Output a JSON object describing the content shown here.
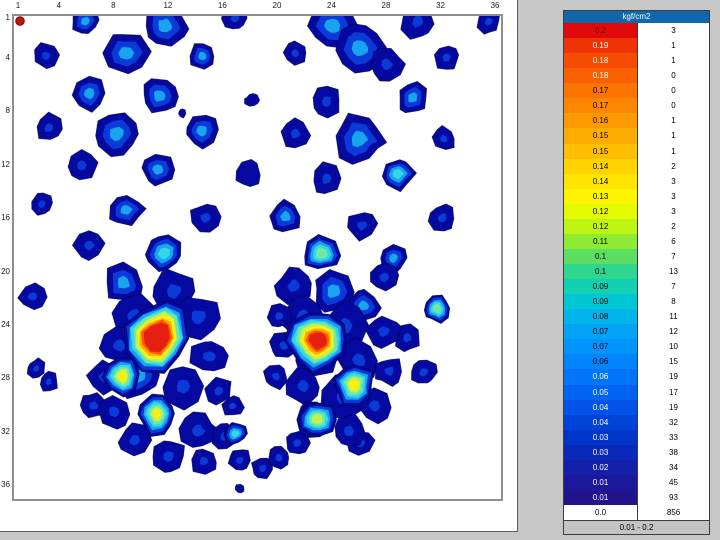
{
  "app": {
    "background": "#c7c7c7",
    "page_bg": "#ffffff"
  },
  "chart_data": {
    "type": "heatmap",
    "unit": "kgf/cm2",
    "x_ticks": [
      1,
      4,
      8,
      12,
      16,
      20,
      24,
      28,
      32,
      36
    ],
    "y_ticks": [
      1,
      4,
      8,
      12,
      16,
      20,
      24,
      28,
      32,
      36
    ],
    "x_range": [
      1,
      36
    ],
    "y_range": [
      1,
      36
    ],
    "grid_cells_total": 1296,
    "marker": {
      "col": 1,
      "row": 1,
      "color": "#c21407",
      "edge": "#7c0a0a"
    },
    "palette": [
      "#0509A0",
      "#0A3BD8",
      "#18A4EE",
      "#35D6E8",
      "#6FE8A8",
      "#C3F14E",
      "#FBF10C",
      "#FFAE00",
      "#FF5A00",
      "#E62011"
    ],
    "legend": {
      "title": "kgf/cm2",
      "header_bg": "#0F68AC",
      "header_fg": "#FFFFFF",
      "footer_label": "0.01 - 0.2",
      "footer_bg": "#C3C3C3",
      "rows": [
        {
          "value": "0.2",
          "count": "3",
          "bg": "#E10A0A",
          "fg": "#7A0000"
        },
        {
          "value": "0.19",
          "count": "1",
          "bg": "#EF3305",
          "fg": "#FFFFFF"
        },
        {
          "value": "0.18",
          "count": "1",
          "bg": "#F64B00",
          "fg": "#FFFFFF"
        },
        {
          "value": "0.18",
          "count": "0",
          "bg": "#FA5F00",
          "fg": "#FFFFFF"
        },
        {
          "value": "0.17",
          "count": "0",
          "bg": "#FC7300",
          "fg": "#000000"
        },
        {
          "value": "0.17",
          "count": "0",
          "bg": "#FE8600",
          "fg": "#000000"
        },
        {
          "value": "0.16",
          "count": "1",
          "bg": "#FF9900",
          "fg": "#000000"
        },
        {
          "value": "0.15",
          "count": "1",
          "bg": "#FFAC00",
          "fg": "#000000"
        },
        {
          "value": "0.15",
          "count": "1",
          "bg": "#FFBF00",
          "fg": "#000000"
        },
        {
          "value": "0.14",
          "count": "2",
          "bg": "#FFD200",
          "fg": "#000000"
        },
        {
          "value": "0.14",
          "count": "3",
          "bg": "#FFE400",
          "fg": "#000000"
        },
        {
          "value": "0.13",
          "count": "3",
          "bg": "#FCF400",
          "fg": "#000000"
        },
        {
          "value": "0.12",
          "count": "3",
          "bg": "#E3FA00",
          "fg": "#000000"
        },
        {
          "value": "0.12",
          "count": "2",
          "bg": "#BEF513",
          "fg": "#000000"
        },
        {
          "value": "0.11",
          "count": "6",
          "bg": "#8FEA33",
          "fg": "#000000"
        },
        {
          "value": "0.1",
          "count": "7",
          "bg": "#5BDE62",
          "fg": "#000000"
        },
        {
          "value": "0.1",
          "count": "13",
          "bg": "#2FD78E",
          "fg": "#000000"
        },
        {
          "value": "0.09",
          "count": "7",
          "bg": "#12D1B2",
          "fg": "#000000"
        },
        {
          "value": "0.09",
          "count": "8",
          "bg": "#00C7D3",
          "fg": "#000000"
        },
        {
          "value": "0.08",
          "count": "11",
          "bg": "#00B5E9",
          "fg": "#000000"
        },
        {
          "value": "0.07",
          "count": "12",
          "bg": "#00A3F6",
          "fg": "#000000"
        },
        {
          "value": "0.07",
          "count": "10",
          "bg": "#0094FD",
          "fg": "#000000"
        },
        {
          "value": "0.06",
          "count": "15",
          "bg": "#0084FF",
          "fg": "#000000"
        },
        {
          "value": "0.06",
          "count": "19",
          "bg": "#0074FB",
          "fg": "#FFFFFF"
        },
        {
          "value": "0.05",
          "count": "17",
          "bg": "#0063F2",
          "fg": "#FFFFFF"
        },
        {
          "value": "0.04",
          "count": "19",
          "bg": "#0053E6",
          "fg": "#FFFFFF"
        },
        {
          "value": "0.04",
          "count": "32",
          "bg": "#0043D8",
          "fg": "#FFFFFF"
        },
        {
          "value": "0.03",
          "count": "33",
          "bg": "#0035C9",
          "fg": "#FFFFFF"
        },
        {
          "value": "0.03",
          "count": "38",
          "bg": "#0A28B9",
          "fg": "#FFFFFF"
        },
        {
          "value": "0.02",
          "count": "34",
          "bg": "#141FAA",
          "fg": "#FFFFFF"
        },
        {
          "value": "0.01",
          "count": "45",
          "bg": "#1B189B",
          "fg": "#FFFFFF"
        },
        {
          "value": "0.01",
          "count": "93",
          "bg": "#21148D",
          "fg": "#FFFFFF"
        },
        {
          "value": "0.0",
          "count": "856",
          "bg": "#FFFFFF",
          "fg": "#000000"
        }
      ]
    },
    "points": [
      [
        5.8,
        1.1,
        1.0,
        2
      ],
      [
        11.6,
        1.45,
        1.6,
        2
      ],
      [
        16.8,
        0.9,
        0.9,
        1
      ],
      [
        23.9,
        1.45,
        1.8,
        2
      ],
      [
        30.2,
        1.1,
        1.3,
        1
      ],
      [
        35.4,
        1.1,
        0.9,
        1
      ],
      [
        2.9,
        3.7,
        0.9,
        1
      ],
      [
        8.8,
        3.5,
        1.6,
        2
      ],
      [
        14.4,
        3.7,
        1.0,
        2
      ],
      [
        21.2,
        3.5,
        0.9,
        1
      ],
      [
        25.9,
        3.1,
        1.8,
        2
      ],
      [
        27.9,
        4.3,
        1.2,
        1
      ],
      [
        32.3,
        3.8,
        0.9,
        1
      ],
      [
        6.1,
        6.5,
        1.2,
        2
      ],
      [
        11.2,
        6.7,
        1.25,
        2
      ],
      [
        18.0,
        7.0,
        0.5,
        0
      ],
      [
        23.5,
        7.1,
        1.1,
        1
      ],
      [
        29.8,
        6.8,
        1.1,
        2
      ],
      [
        12.9,
        8.0,
        0.3,
        0
      ],
      [
        3.1,
        9.1,
        1.0,
        1
      ],
      [
        8.1,
        9.5,
        1.5,
        2
      ],
      [
        14.3,
        9.3,
        1.2,
        2
      ],
      [
        21.2,
        9.5,
        1.0,
        1
      ],
      [
        25.9,
        9.9,
        1.8,
        2
      ],
      [
        32.1,
        9.9,
        0.9,
        1
      ],
      [
        5.5,
        11.9,
        1.1,
        1
      ],
      [
        11.1,
        12.2,
        1.25,
        2
      ],
      [
        17.7,
        12.5,
        1.0,
        0
      ],
      [
        23.5,
        12.9,
        1.1,
        1
      ],
      [
        28.7,
        12.5,
        1.2,
        3
      ],
      [
        2.6,
        14.8,
        0.8,
        1
      ],
      [
        8.8,
        15.2,
        1.25,
        2
      ],
      [
        14.6,
        15.8,
        1.1,
        1
      ],
      [
        20.5,
        15.7,
        1.2,
        2
      ],
      [
        26.1,
        16.4,
        1.1,
        1
      ],
      [
        32.0,
        15.8,
        1.0,
        1
      ],
      [
        6.1,
        17.9,
        1.1,
        1
      ],
      [
        11.6,
        18.5,
        1.25,
        3
      ],
      [
        23.1,
        18.5,
        1.3,
        4
      ],
      [
        28.4,
        18.8,
        1.1,
        2
      ],
      [
        27.7,
        20.3,
        1.0,
        1
      ],
      [
        1.9,
        21.7,
        1.0,
        1
      ],
      [
        31.6,
        22.6,
        1.0,
        4
      ],
      [
        29.4,
        24.8,
        0.95,
        1
      ],
      [
        30.6,
        27.4,
        0.95,
        1
      ],
      [
        2.2,
        27.1,
        0.7,
        1
      ],
      [
        3.1,
        28.1,
        0.7,
        1
      ],
      [
        6.4,
        29.9,
        0.95,
        1
      ],
      [
        26.0,
        32.7,
        0.95,
        1
      ],
      [
        17.1,
        36.1,
        0.35,
        0
      ],
      [
        21.3,
        32.7,
        0.9,
        1
      ],
      [
        8.6,
        20.7,
        1.4,
        2
      ],
      [
        12.3,
        21.3,
        1.6,
        1
      ],
      [
        9.4,
        23.2,
        1.6,
        1
      ],
      [
        14.1,
        23.2,
        1.5,
        1
      ],
      [
        8.3,
        25.4,
        1.3,
        1
      ],
      [
        14.9,
        26.2,
        1.3,
        1
      ],
      [
        7.2,
        27.7,
        1.2,
        1
      ],
      [
        9.7,
        27.7,
        1.6,
        2
      ],
      [
        13.0,
        28.4,
        1.6,
        1
      ],
      [
        15.6,
        28.8,
        1.0,
        1
      ],
      [
        7.9,
        30.3,
        1.3,
        1
      ],
      [
        14.1,
        31.8,
        1.3,
        1
      ],
      [
        9.4,
        32.5,
        1.2,
        1
      ],
      [
        11.9,
        33.7,
        1.3,
        1
      ],
      [
        14.5,
        34.0,
        1.0,
        1
      ],
      [
        16.0,
        32.2,
        0.9,
        1
      ],
      [
        16.6,
        29.9,
        0.75,
        1
      ],
      [
        21.1,
        20.9,
        1.3,
        1
      ],
      [
        24.0,
        21.3,
        1.5,
        2
      ],
      [
        26.2,
        22.4,
        1.2,
        2
      ],
      [
        21.8,
        23.2,
        1.5,
        1
      ],
      [
        24.8,
        23.9,
        1.6,
        1
      ],
      [
        27.7,
        24.3,
        1.2,
        1
      ],
      [
        22.6,
        26.2,
        1.7,
        1
      ],
      [
        25.9,
        26.5,
        1.5,
        1
      ],
      [
        28.1,
        27.3,
        1.0,
        1
      ],
      [
        21.8,
        28.4,
        1.3,
        1
      ],
      [
        24.8,
        29.2,
        1.6,
        1
      ],
      [
        27.0,
        29.9,
        1.2,
        1
      ],
      [
        22.6,
        31.0,
        1.4,
        1
      ],
      [
        25.1,
        31.8,
        1.2,
        1
      ],
      [
        20.4,
        25.4,
        1.0,
        1
      ],
      [
        20.0,
        23.2,
        0.9,
        1
      ],
      [
        19.8,
        27.7,
        0.9,
        1
      ],
      [
        17.1,
        34.0,
        0.85,
        1
      ],
      [
        18.8,
        34.6,
        0.8,
        1
      ],
      [
        20.0,
        33.8,
        0.8,
        1
      ],
      [
        16.8,
        32.0,
        0.8,
        3
      ],
      [
        8.5,
        27.7,
        1.5,
        6,
        0.25
      ],
      [
        11.05,
        30.5,
        1.5,
        6,
        0.22
      ],
      [
        25.5,
        28.3,
        1.5,
        6,
        0.25
      ],
      [
        22.8,
        30.9,
        1.4,
        5,
        0.3
      ],
      [
        11.05,
        24.8,
        2.5,
        9,
        0.42
      ],
      [
        22.9,
        25.0,
        2.3,
        9,
        0.3
      ]
    ]
  }
}
